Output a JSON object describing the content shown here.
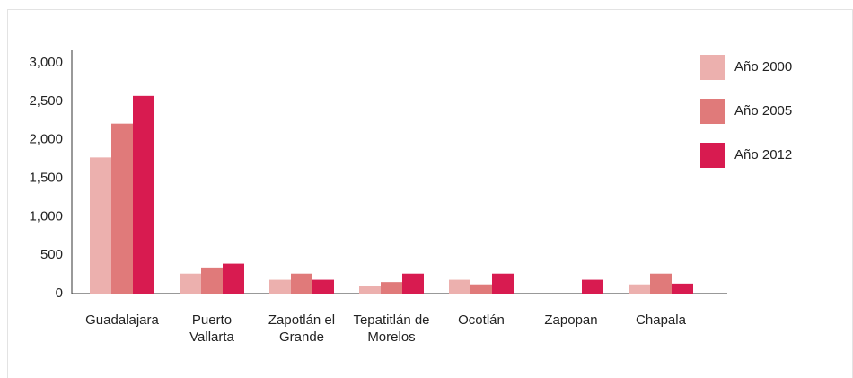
{
  "chart_data": {
    "type": "bar",
    "categories": [
      "Guadalajara",
      "Puerto Vallarta",
      "Zapotlán el Grande",
      "Tepatitlán de Morelos",
      "Ocotlán",
      "Zapopan",
      "Chapala"
    ],
    "series": [
      {
        "name": "Año 2000",
        "color": "#ecb0ae",
        "values": [
          1770,
          260,
          180,
          100,
          180,
          null,
          120
        ]
      },
      {
        "name": "Año 2005",
        "color": "#e07a7a",
        "values": [
          2210,
          340,
          260,
          150,
          120,
          null,
          260
        ]
      },
      {
        "name": "Año 2012",
        "color": "#d81b50",
        "values": [
          2570,
          390,
          180,
          260,
          260,
          180,
          130
        ]
      }
    ],
    "ylim": [
      0,
      3000
    ],
    "yticks": [
      0,
      500,
      {
        "value": 1000,
        "label": "1,000"
      },
      {
        "value": 1500,
        "label": "1,500"
      },
      {
        "value": 2000,
        "label": "2,000"
      },
      {
        "value": 2500,
        "label": "2,500"
      },
      {
        "value": 3000,
        "label": "3,000"
      }
    ],
    "legend": "right"
  }
}
